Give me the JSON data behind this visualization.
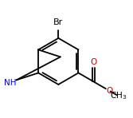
{
  "bg_color": "#ffffff",
  "bond_color": "#000000",
  "nh_color": "#0000cc",
  "o_color": "#cc0000",
  "br_label": "Br",
  "nh_label": "NH",
  "figsize": [
    1.67,
    1.48
  ],
  "dpi": 100,
  "bond_lw": 1.3,
  "font_size_br": 8.0,
  "font_size_nh": 7.5,
  "font_size_o": 7.5,
  "font_size_ch3": 7.5
}
